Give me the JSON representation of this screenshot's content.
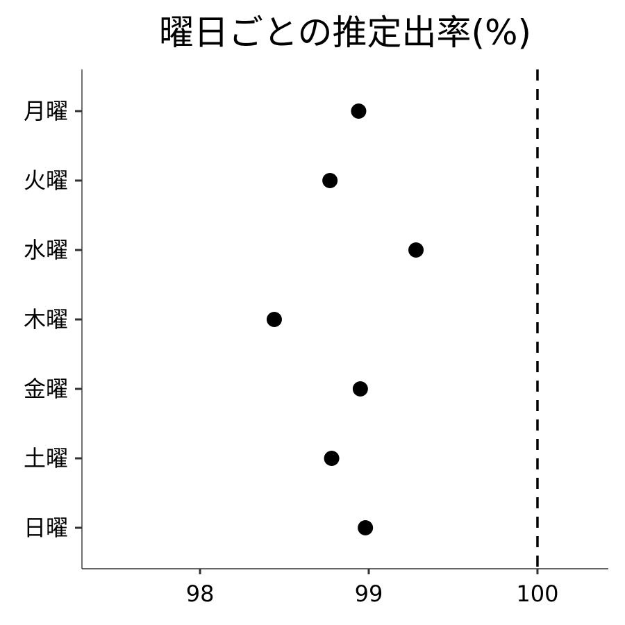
{
  "chart_data": {
    "type": "scatter",
    "title": "曜日ごとの推定出率(%)",
    "xlabel": "",
    "ylabel": "",
    "categories": [
      "月曜",
      "火曜",
      "水曜",
      "木曜",
      "金曜",
      "土曜",
      "日曜"
    ],
    "values": [
      98.94,
      98.77,
      99.28,
      98.44,
      98.95,
      98.78,
      98.98
    ],
    "xlim": [
      97.3,
      100.42
    ],
    "x_ticks": [
      98,
      99,
      100
    ],
    "x_tick_labels": [
      "98",
      "99",
      "100"
    ],
    "reference_line": {
      "x": 100,
      "style": "dashed",
      "color": "#000000"
    },
    "point_color": "#000000",
    "grid": false
  }
}
